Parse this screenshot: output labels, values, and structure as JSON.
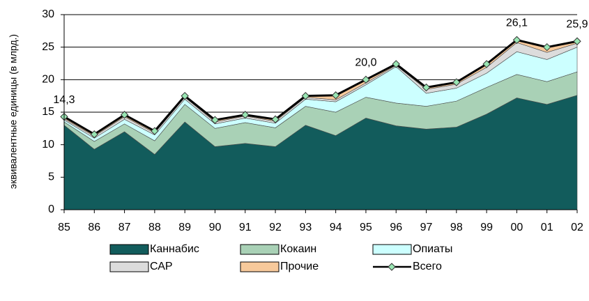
{
  "chart_data": {
    "type": "area",
    "y_label": "эквивалентные единицы (в млрд.)",
    "categories": [
      "85",
      "86",
      "87",
      "88",
      "89",
      "90",
      "91",
      "92",
      "93",
      "94",
      "95",
      "96",
      "97",
      "98",
      "99",
      "00",
      "01",
      "02"
    ],
    "ylim": [
      0,
      30
    ],
    "yticks": [
      0,
      5,
      10,
      15,
      20,
      25,
      30
    ],
    "grid": true,
    "series": [
      {
        "name": "Каннабис",
        "color": "#125c5c",
        "values": [
          13.0,
          9.3,
          12.0,
          8.5,
          13.5,
          9.7,
          10.2,
          9.7,
          13.0,
          11.4,
          14.1,
          12.9,
          12.4,
          12.7,
          14.7,
          17.2,
          16.2,
          17.6
        ]
      },
      {
        "name": "Кокаин",
        "color": "#a9d1b6",
        "values": [
          0.5,
          1.2,
          1.2,
          2.1,
          2.7,
          2.8,
          3.2,
          2.9,
          2.9,
          3.6,
          3.2,
          3.5,
          3.5,
          4.0,
          4.1,
          3.6,
          3.5,
          3.6
        ]
      },
      {
        "name": "Опиаты",
        "color": "#ccffff",
        "values": [
          0.3,
          0.5,
          0.7,
          0.9,
          0.8,
          0.7,
          0.7,
          0.7,
          1.1,
          1.6,
          1.9,
          5.6,
          2.0,
          2.0,
          2.2,
          3.5,
          3.4,
          3.8
        ]
      },
      {
        "name": "САР",
        "color": "#dcdcdc",
        "values": [
          0.2,
          0.3,
          0.4,
          0.3,
          0.3,
          0.3,
          0.3,
          0.3,
          0.3,
          0.3,
          0.3,
          0.2,
          0.6,
          0.6,
          0.9,
          1.4,
          1.1,
          0.6
        ]
      },
      {
        "name": "Прочие",
        "color": "#f7c99b",
        "values": [
          0.3,
          0.3,
          0.3,
          0.3,
          0.2,
          0.3,
          0.2,
          0.3,
          0.2,
          0.7,
          0.5,
          0.2,
          0.3,
          0.3,
          0.5,
          0.4,
          0.8,
          0.3
        ]
      },
      {
        "name": "Всего",
        "kind": "line",
        "color": "#000000",
        "marker_color": "#99e6b3",
        "values": [
          14.3,
          11.6,
          14.6,
          12.1,
          17.5,
          13.8,
          14.6,
          13.9,
          17.5,
          17.6,
          20.0,
          22.4,
          18.8,
          19.6,
          22.4,
          26.1,
          25.0,
          25.9
        ],
        "value_labels": [
          "14,3",
          null,
          null,
          null,
          null,
          null,
          null,
          null,
          null,
          null,
          "20,0",
          null,
          null,
          null,
          null,
          "26,1",
          null,
          "25,9"
        ]
      }
    ]
  }
}
